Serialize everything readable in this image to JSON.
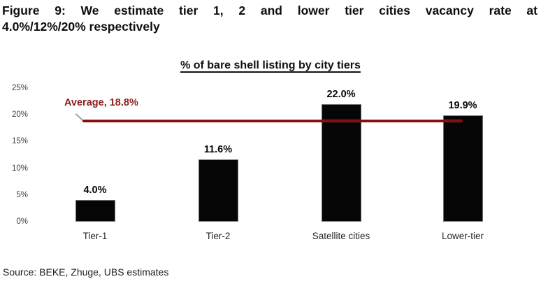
{
  "figure": {
    "title_line1": "Figure 9: We estimate tier 1, 2 and lower tier cities vacancy rate at",
    "title_line2": "4.0%/12%/20% respectively",
    "source": "Source: BEKE, Zhuge, UBS estimates"
  },
  "chart_data": {
    "type": "bar",
    "title": "% of bare shell listing by city tiers",
    "categories": [
      "Tier-1",
      "Tier-2",
      "Satellite cities",
      "Lower-tier"
    ],
    "values": [
      4.0,
      11.6,
      22.0,
      19.9
    ],
    "data_labels": [
      "4.0%",
      "11.6%",
      "22.0%",
      "19.9%"
    ],
    "average": 18.8,
    "average_label": "Average, 18.8%",
    "ylim": [
      0,
      25
    ],
    "yticks": [
      0,
      5,
      10,
      15,
      20,
      25
    ],
    "ytick_labels": [
      "0%",
      "5%",
      "10%",
      "15%",
      "20%",
      "25%"
    ],
    "xlabel": "",
    "ylabel": "",
    "grid": false,
    "legend": false,
    "bar_color": "#060606",
    "average_line_color": "#8f1111",
    "average_label_color": "#8e1c1c"
  }
}
